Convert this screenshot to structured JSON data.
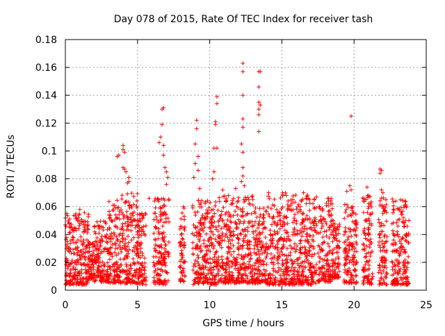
{
  "chart_data": {
    "type": "scatter",
    "title": "Day 078 of 2015, Rate Of TEC Index for receiver tash",
    "xlabel": "GPS time / hours",
    "ylabel": "ROTI / TECUs",
    "xlim": [
      0,
      25
    ],
    "ylim": [
      0,
      0.18
    ],
    "xticks": [
      0,
      5,
      10,
      15,
      20,
      25
    ],
    "yticks": [
      0,
      0.02,
      0.04,
      0.06,
      0.08,
      0.1,
      0.12,
      0.14,
      0.16,
      0.18
    ],
    "xtick_labels": [
      "0",
      "5",
      "10",
      "15",
      "20",
      "25"
    ],
    "ytick_labels": [
      "0",
      "0.02",
      "0.04",
      "0.06",
      "0.08",
      "0.1",
      "0.12",
      "0.14",
      "0.16",
      "0.18"
    ],
    "grid": true,
    "marker": "+",
    "color": "#ff0000",
    "series": [
      {
        "name": "ROTI",
        "dense_band": [
          {
            "x0": 0.0,
            "x1": 1.6,
            "ymin": 0.004,
            "ymax": 0.056
          },
          {
            "x0": 1.6,
            "x1": 2.0,
            "ymin": 0.008,
            "ymax": 0.035
          },
          {
            "x0": 2.0,
            "x1": 3.0,
            "ymin": 0.006,
            "ymax": 0.05
          },
          {
            "x0": 3.0,
            "x1": 5.0,
            "ymin": 0.005,
            "ymax": 0.07
          },
          {
            "x0": 5.0,
            "x1": 5.6,
            "ymin": 0.004,
            "ymax": 0.058
          },
          {
            "x0": 6.1,
            "x1": 7.2,
            "ymin": 0.004,
            "ymax": 0.066
          },
          {
            "x0": 7.9,
            "x1": 8.3,
            "ymin": 0.006,
            "ymax": 0.06
          },
          {
            "x0": 8.8,
            "x1": 10.5,
            "ymin": 0.004,
            "ymax": 0.065
          },
          {
            "x0": 10.5,
            "x1": 13.0,
            "ymin": 0.005,
            "ymax": 0.068
          },
          {
            "x0": 13.0,
            "x1": 14.0,
            "ymin": 0.005,
            "ymax": 0.06
          },
          {
            "x0": 14.0,
            "x1": 17.4,
            "ymin": 0.004,
            "ymax": 0.07
          },
          {
            "x0": 17.5,
            "x1": 18.5,
            "ymin": 0.006,
            "ymax": 0.066
          },
          {
            "x0": 18.5,
            "x1": 19.0,
            "ymin": 0.008,
            "ymax": 0.05
          },
          {
            "x0": 19.3,
            "x1": 20.2,
            "ymin": 0.005,
            "ymax": 0.063
          },
          {
            "x0": 20.6,
            "x1": 21.3,
            "ymin": 0.004,
            "ymax": 0.068
          },
          {
            "x0": 21.7,
            "x1": 22.3,
            "ymin": 0.004,
            "ymax": 0.068
          },
          {
            "x0": 22.6,
            "x1": 23.8,
            "ymin": 0.004,
            "ymax": 0.066
          }
        ],
        "outliers": [
          {
            "x": 0.0,
            "y": 0.047
          },
          {
            "x": 0.1,
            "y": 0.055
          },
          {
            "x": 1.0,
            "y": 0.058
          },
          {
            "x": 3.6,
            "y": 0.096
          },
          {
            "x": 3.7,
            "y": 0.097
          },
          {
            "x": 4.0,
            "y": 0.104
          },
          {
            "x": 4.0,
            "y": 0.101
          },
          {
            "x": 4.1,
            "y": 0.099
          },
          {
            "x": 4.0,
            "y": 0.088
          },
          {
            "x": 4.1,
            "y": 0.087
          },
          {
            "x": 4.2,
            "y": 0.085
          },
          {
            "x": 4.4,
            "y": 0.081
          },
          {
            "x": 4.3,
            "y": 0.077
          },
          {
            "x": 4.4,
            "y": 0.078
          },
          {
            "x": 5.8,
            "y": 0.066
          },
          {
            "x": 6.5,
            "y": 0.106
          },
          {
            "x": 6.6,
            "y": 0.11
          },
          {
            "x": 6.7,
            "y": 0.13
          },
          {
            "x": 6.8,
            "y": 0.131
          },
          {
            "x": 6.7,
            "y": 0.119
          },
          {
            "x": 6.8,
            "y": 0.104
          },
          {
            "x": 6.8,
            "y": 0.097
          },
          {
            "x": 6.9,
            "y": 0.088
          },
          {
            "x": 7.0,
            "y": 0.085
          },
          {
            "x": 7.1,
            "y": 0.081
          },
          {
            "x": 7.0,
            "y": 0.076
          },
          {
            "x": 8.9,
            "y": 0.081
          },
          {
            "x": 9.0,
            "y": 0.091
          },
          {
            "x": 9.0,
            "y": 0.105
          },
          {
            "x": 9.1,
            "y": 0.122
          },
          {
            "x": 9.1,
            "y": 0.116
          },
          {
            "x": 9.2,
            "y": 0.096
          },
          {
            "x": 9.2,
            "y": 0.086
          },
          {
            "x": 9.3,
            "y": 0.073
          },
          {
            "x": 10.2,
            "y": 0.08
          },
          {
            "x": 10.3,
            "y": 0.085
          },
          {
            "x": 10.3,
            "y": 0.102
          },
          {
            "x": 10.4,
            "y": 0.119
          },
          {
            "x": 10.4,
            "y": 0.121
          },
          {
            "x": 10.5,
            "y": 0.134
          },
          {
            "x": 10.5,
            "y": 0.139
          },
          {
            "x": 10.5,
            "y": 0.102
          },
          {
            "x": 10.9,
            "y": 0.072
          },
          {
            "x": 11.3,
            "y": 0.068
          },
          {
            "x": 11.8,
            "y": 0.073
          },
          {
            "x": 12.3,
            "y": 0.163
          },
          {
            "x": 12.3,
            "y": 0.157
          },
          {
            "x": 12.3,
            "y": 0.14
          },
          {
            "x": 12.3,
            "y": 0.123
          },
          {
            "x": 12.3,
            "y": 0.117
          },
          {
            "x": 12.2,
            "y": 0.105
          },
          {
            "x": 12.3,
            "y": 0.099
          },
          {
            "x": 12.3,
            "y": 0.088
          },
          {
            "x": 12.3,
            "y": 0.082
          },
          {
            "x": 12.2,
            "y": 0.078
          },
          {
            "x": 12.4,
            "y": 0.075
          },
          {
            "x": 13.4,
            "y": 0.157
          },
          {
            "x": 13.5,
            "y": 0.157
          },
          {
            "x": 13.4,
            "y": 0.146
          },
          {
            "x": 13.4,
            "y": 0.135
          },
          {
            "x": 13.5,
            "y": 0.133
          },
          {
            "x": 13.4,
            "y": 0.13
          },
          {
            "x": 13.4,
            "y": 0.126
          },
          {
            "x": 13.4,
            "y": 0.114
          },
          {
            "x": 16.5,
            "y": 0.07
          },
          {
            "x": 19.5,
            "y": 0.071
          },
          {
            "x": 19.8,
            "y": 0.125
          },
          {
            "x": 19.7,
            "y": 0.075
          },
          {
            "x": 19.8,
            "y": 0.072
          },
          {
            "x": 20.9,
            "y": 0.074
          },
          {
            "x": 21.0,
            "y": 0.068
          },
          {
            "x": 21.8,
            "y": 0.087
          },
          {
            "x": 21.8,
            "y": 0.084
          },
          {
            "x": 21.9,
            "y": 0.086
          },
          {
            "x": 21.9,
            "y": 0.072
          },
          {
            "x": 22.0,
            "y": 0.07
          }
        ]
      }
    ]
  }
}
